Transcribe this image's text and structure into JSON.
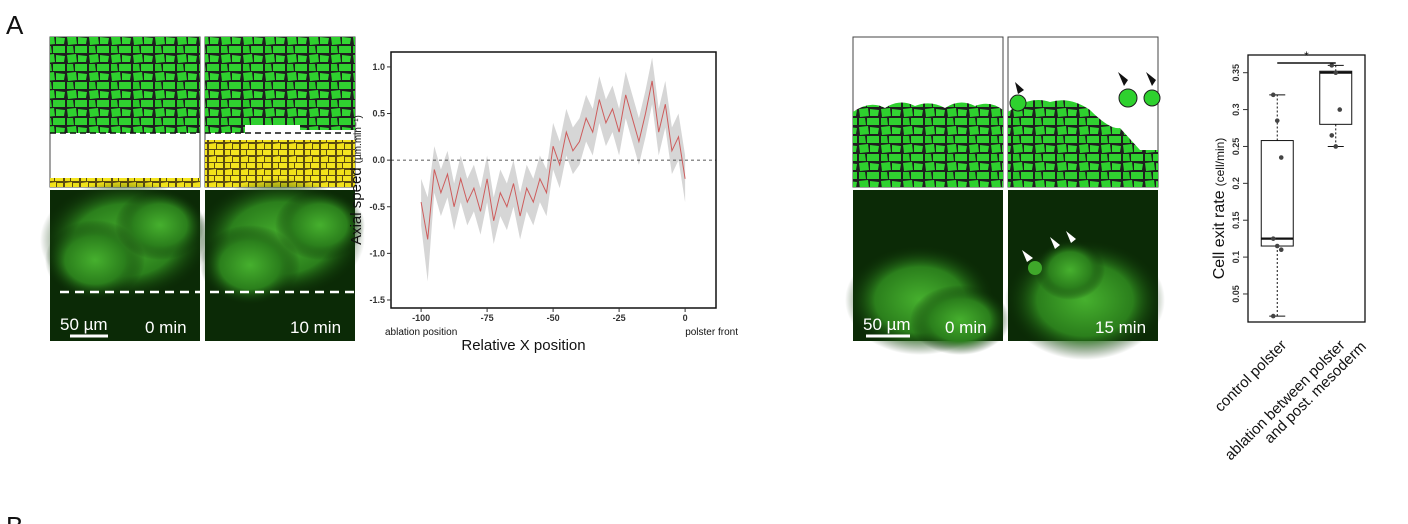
{
  "panels": {
    "a": "A",
    "b": "B"
  },
  "images": {
    "left": {
      "scale": "50 µm",
      "time_start": "0 min",
      "time_end": "10 min"
    },
    "right": {
      "scale": "50 µm",
      "time_start": "0 min",
      "time_end": "15 min"
    }
  },
  "chart_data": [
    {
      "type": "line",
      "xlabel": "Relative X position",
      "ylabel": "Axial speed",
      "ylabel_unit": "(µm.min⁻¹)",
      "x_left_note": "ablation position",
      "x_right_note": "polster front",
      "xlim": [
        -111.4,
        11.7
      ],
      "ylim": [
        -1.586,
        1.16
      ],
      "xticks": [
        -100,
        -75,
        -50,
        -25,
        0
      ],
      "yticks": [
        -1.5,
        {
          "value": -1,
          "label": "-1.0"
        },
        -0.5,
        {
          "value": 0,
          "label": "0.0"
        },
        0.5,
        {
          "value": 1,
          "label": "1.0"
        }
      ],
      "reference_line": 0,
      "x": [
        -100,
        -97.5,
        -95,
        -92.5,
        -90,
        -87.5,
        -85,
        -82.5,
        -80,
        -77.5,
        -75,
        -72.5,
        -70,
        -67.5,
        -65,
        -62.5,
        -60,
        -57.5,
        -55,
        -52.5,
        -50,
        -47.5,
        -45,
        -42.5,
        -40,
        -37.5,
        -35,
        -32.5,
        -30,
        -27.5,
        -25,
        -22.5,
        -20,
        -17.5,
        -15,
        -12.5,
        -10,
        -7.5,
        -5,
        -2.5,
        0
      ],
      "series": [
        {
          "color": "#cd5c5c",
          "values": [
            -0.45,
            -0.85,
            -0.1,
            -0.35,
            -0.15,
            -0.5,
            -0.2,
            -0.45,
            -0.3,
            -0.55,
            -0.2,
            -0.65,
            -0.35,
            -0.5,
            -0.25,
            -0.6,
            -0.3,
            -0.45,
            -0.2,
            -0.35,
            0.15,
            -0.05,
            0.3,
            0.1,
            0.2,
            0.45,
            0.3,
            0.65,
            0.4,
            0.55,
            0.3,
            0.7,
            0.45,
            0.2,
            0.5,
            0.85,
            0.3,
            0.6,
            0.1,
            0.25,
            -0.2
          ]
        }
      ],
      "band": {
        "color": "#d6d6d6",
        "lower": [
          -0.7,
          -1.3,
          -0.35,
          -0.6,
          -0.4,
          -0.75,
          -0.45,
          -0.7,
          -0.55,
          -0.8,
          -0.45,
          -0.9,
          -0.6,
          -0.75,
          -0.5,
          -0.85,
          -0.55,
          -0.7,
          -0.45,
          -0.6,
          -0.1,
          -0.3,
          0.05,
          -0.15,
          -0.05,
          0.2,
          0.05,
          0.4,
          0.15,
          0.3,
          0.05,
          0.45,
          0.2,
          -0.05,
          0.25,
          0.6,
          0.05,
          0.35,
          -0.15,
          0.0,
          -0.45
        ],
        "upper": [
          -0.2,
          -0.4,
          0.15,
          -0.1,
          0.1,
          -0.25,
          0.05,
          -0.2,
          -0.05,
          -0.3,
          0.05,
          -0.4,
          -0.1,
          -0.25,
          0.0,
          -0.35,
          -0.05,
          -0.2,
          0.05,
          -0.1,
          0.4,
          0.2,
          0.55,
          0.35,
          0.45,
          0.7,
          0.55,
          0.9,
          0.65,
          0.8,
          0.55,
          0.95,
          0.7,
          0.45,
          0.75,
          1.1,
          0.55,
          0.85,
          0.35,
          0.5,
          0.05
        ]
      }
    },
    {
      "type": "box",
      "ylabel": "Cell exit rate",
      "ylabel_unit": "(cell/min)",
      "ylim": [
        0.012,
        0.374
      ],
      "yticks": [
        0.05,
        0.1,
        0.15,
        0.2,
        0.25,
        0.3,
        0.35
      ],
      "categories": [
        [
          "control polster"
        ],
        [
          "ablation between polster",
          "and post. mesoderm"
        ]
      ],
      "significance": "*",
      "boxes": [
        {
          "min": 0.02,
          "q1": 0.115,
          "median": 0.125,
          "q3": 0.258,
          "max": 0.32,
          "points": [
            0.32,
            0.285,
            0.235,
            0.125,
            0.115,
            0.11,
            0.02
          ]
        },
        {
          "min": 0.25,
          "q1": 0.28,
          "median": 0.35,
          "q3": 0.352,
          "max": 0.36,
          "points": [
            0.36,
            0.35,
            0.3,
            0.265,
            0.25
          ]
        }
      ]
    }
  ]
}
